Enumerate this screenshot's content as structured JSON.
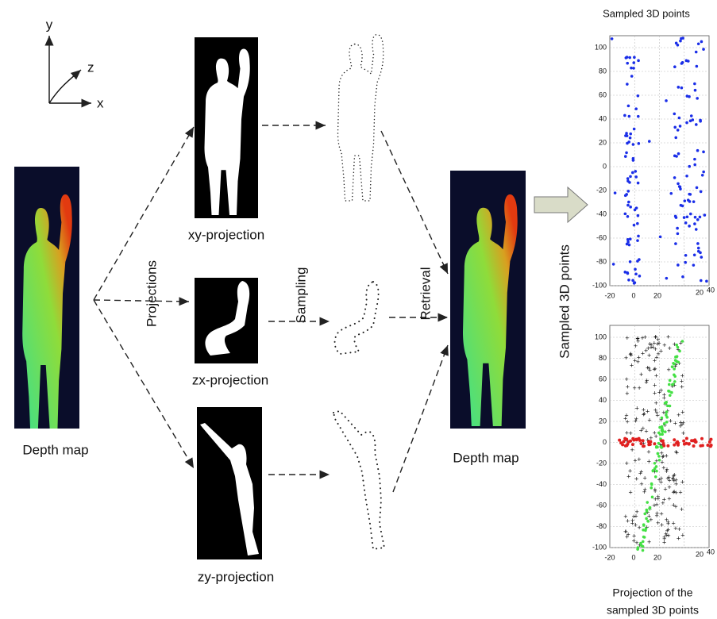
{
  "axes_icon": {
    "y": "y",
    "z": "z",
    "x": "x"
  },
  "input": {
    "label": "Depth map"
  },
  "steps": {
    "projections": "Projections",
    "sampling": "Sampling",
    "retrieval": "Retrieval"
  },
  "projections": [
    {
      "label": "xy-projection"
    },
    {
      "label": "zx-projection"
    },
    {
      "label": "zy-projection"
    }
  ],
  "output": {
    "label": "Depth map"
  },
  "side_label": "Sampled 3D points",
  "plots": [
    {
      "title": "Sampled 3D points",
      "yticks": [
        100,
        80,
        60,
        40,
        20,
        0,
        -20,
        -40,
        -60,
        -80,
        -100
      ],
      "xticks": [
        -20,
        0,
        20
      ],
      "zticks": [
        20,
        40
      ]
    },
    {
      "caption": [
        "Projection of the",
        "sampled 3D points"
      ],
      "yticks": [
        100,
        80,
        60,
        40,
        20,
        0,
        -20,
        -40,
        -60,
        -80,
        -100
      ],
      "xticks": [
        -20,
        0,
        20
      ],
      "zticks": [
        20,
        40
      ]
    }
  ]
}
